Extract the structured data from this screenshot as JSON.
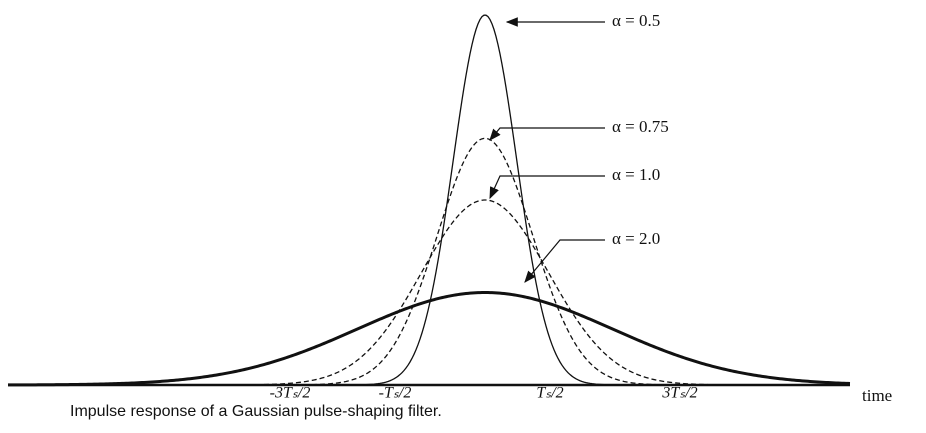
{
  "curves": [
    {
      "label": "α = 0.5",
      "alpha": 0.5,
      "style": "solid"
    },
    {
      "label": "α = 0.75",
      "alpha": 0.75,
      "style": "dashed"
    },
    {
      "label": "α = 1.0",
      "alpha": 1.0,
      "style": "dashed"
    },
    {
      "label": "α = 2.0",
      "alpha": 2.0,
      "style": "bold"
    }
  ],
  "ticks": [
    "-3Tₛ/2",
    "-Tₛ/2",
    "Tₛ/2",
    "3Tₛ/2"
  ],
  "axis_label": "time",
  "caption": "Impulse response of a Gaussian pulse-shaping filter."
}
